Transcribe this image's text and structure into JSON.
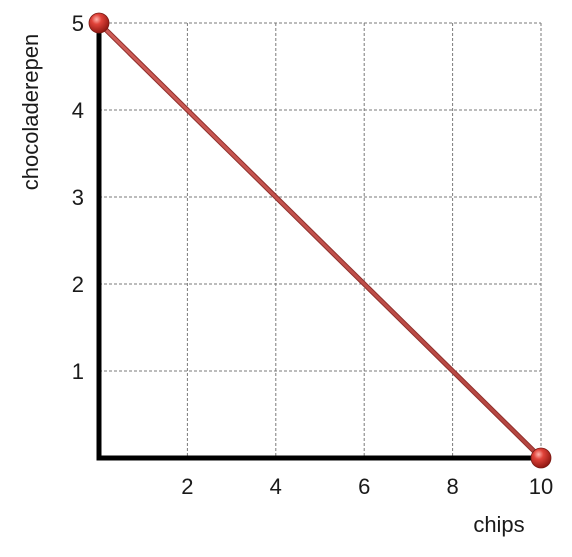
{
  "chart_data": {
    "type": "line",
    "xlabel": "chips",
    "ylabel": "chocoladerepen",
    "xlim": [
      0,
      10
    ],
    "ylim": [
      0,
      5
    ],
    "x_ticks": [
      2,
      4,
      6,
      8,
      10
    ],
    "y_ticks": [
      1,
      2,
      3,
      4,
      5
    ],
    "grid": true,
    "series": [
      {
        "x": [
          0,
          10
        ],
        "y": [
          5,
          0
        ],
        "color": "#c0504d",
        "marker": "sphere"
      }
    ]
  }
}
